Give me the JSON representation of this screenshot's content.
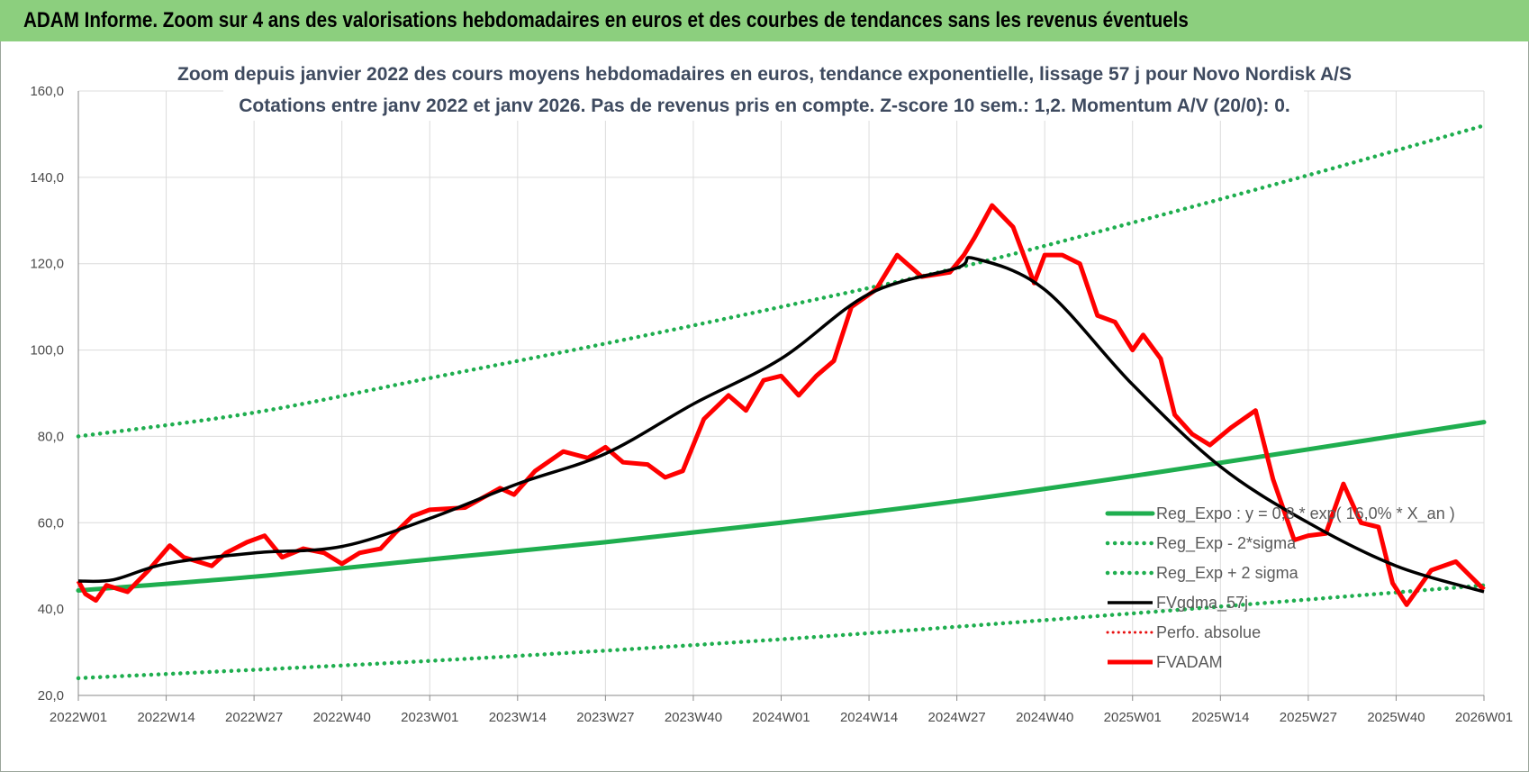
{
  "banner": {
    "title": "ADAM Informe. Zoom sur 4 ans des valorisations hebdomadaires en euros et des courbes de tendances sans les revenus éventuels"
  },
  "colors": {
    "banner_bg": "#8ccf7e",
    "regression": "#1fae4f",
    "bands": "#1fae4f",
    "smoothed": "#000000",
    "perfo": "#e81010",
    "price": "#ff0000",
    "grid": "#dcdcdc"
  },
  "chart_data": {
    "type": "line",
    "title_lines": [
      "Zoom depuis janvier 2022 des cours moyens hebdomadaires en euros, tendance exponentielle, lissage 57 j pour Novo Nordisk A/S",
      "Cotations entre janv 2022 et janv 2026. Pas de revenus pris en compte. Z-score 10 sem.: 1,2. Momentum A/V (20/0): 0."
    ],
    "ylim": [
      20,
      160
    ],
    "y_ticks": [
      "20,0",
      "40,0",
      "60,0",
      "80,0",
      "100,0",
      "120,0",
      "140,0",
      "160,0"
    ],
    "x_ticks": [
      "2022W01",
      "2022W14",
      "2022W27",
      "2022W40",
      "2023W01",
      "2023W14",
      "2023W27",
      "2023W40",
      "2024W01",
      "2024W14",
      "2024W27",
      "2024W40",
      "2025W01",
      "2025W14",
      "2025W27",
      "2025W40",
      "2026W01"
    ],
    "x_range_years": [
      0,
      4
    ],
    "grid": "both",
    "legend_position": "bottom-right",
    "legend": [
      "Reg_Expo : y = 0,8 * exp( 16,0% *  X_an )",
      "Reg_Exp - 2*sigma",
      "Reg_Exp + 2 sigma",
      "FVgdma_57j",
      "Perfo. absolue",
      "FVADAM"
    ],
    "series": [
      {
        "name": "Reg_Expo : y = 0,8 * exp( 16,0% *  X_an )",
        "style": "solid-thick",
        "points": [
          [
            0,
            44.3
          ],
          [
            0.5,
            47.5
          ],
          [
            1,
            51.5
          ],
          [
            1.5,
            55.5
          ],
          [
            2,
            60.0
          ],
          [
            2.5,
            65.0
          ],
          [
            3,
            70.8
          ],
          [
            3.5,
            77.0
          ],
          [
            4,
            83.3
          ]
        ]
      },
      {
        "name": "Reg_Exp - 2*sigma",
        "style": "dotted",
        "points": [
          [
            0,
            24.0
          ],
          [
            1,
            28.0
          ],
          [
            2,
            33.0
          ],
          [
            3,
            39.0
          ],
          [
            4,
            45.5
          ]
        ]
      },
      {
        "name": "Reg_Exp + 2 sigma",
        "style": "dotted",
        "points": [
          [
            0,
            80.0
          ],
          [
            0.5,
            85.5
          ],
          [
            1,
            93.5
          ],
          [
            1.5,
            101.5
          ],
          [
            2,
            110.0
          ],
          [
            2.5,
            119.0
          ],
          [
            3,
            129.5
          ],
          [
            3.5,
            140.5
          ],
          [
            4,
            152.0
          ]
        ]
      },
      {
        "name": "FVgdma_57j",
        "style": "solid",
        "points": [
          [
            0,
            46.5
          ],
          [
            0.1,
            46.8
          ],
          [
            0.25,
            50.5
          ],
          [
            0.5,
            53.0
          ],
          [
            0.75,
            54.5
          ],
          [
            1,
            61.0
          ],
          [
            1.25,
            69.0
          ],
          [
            1.5,
            76.0
          ],
          [
            1.75,
            87.5
          ],
          [
            2,
            98.0
          ],
          [
            2.25,
            113.0
          ],
          [
            2.5,
            119.0
          ],
          [
            2.55,
            121.2
          ],
          [
            2.75,
            114.0
          ],
          [
            3,
            92.0
          ],
          [
            3.25,
            73.0
          ],
          [
            3.5,
            60.0
          ],
          [
            3.75,
            50.0
          ],
          [
            4,
            44.0
          ]
        ]
      },
      {
        "name": "Perfo. absolue",
        "style": "dotted",
        "points": []
      },
      {
        "name": "FVADAM",
        "style": "solid-thick",
        "points": [
          [
            0,
            46.5
          ],
          [
            0.02,
            43.5
          ],
          [
            0.05,
            42.0
          ],
          [
            0.08,
            45.5
          ],
          [
            0.14,
            44.0
          ],
          [
            0.2,
            49.0
          ],
          [
            0.26,
            54.7
          ],
          [
            0.3,
            52.0
          ],
          [
            0.38,
            50.0
          ],
          [
            0.42,
            53.0
          ],
          [
            0.48,
            55.5
          ],
          [
            0.53,
            57.0
          ],
          [
            0.58,
            52.0
          ],
          [
            0.64,
            54.0
          ],
          [
            0.7,
            53.0
          ],
          [
            0.75,
            50.5
          ],
          [
            0.8,
            53.0
          ],
          [
            0.86,
            54.0
          ],
          [
            0.9,
            57.5
          ],
          [
            0.95,
            61.5
          ],
          [
            1,
            63.0
          ],
          [
            1.1,
            63.5
          ],
          [
            1.2,
            68.0
          ],
          [
            1.24,
            66.5
          ],
          [
            1.3,
            72.0
          ],
          [
            1.38,
            76.5
          ],
          [
            1.45,
            75.0
          ],
          [
            1.5,
            77.5
          ],
          [
            1.55,
            74.0
          ],
          [
            1.62,
            73.5
          ],
          [
            1.67,
            70.5
          ],
          [
            1.72,
            72.0
          ],
          [
            1.78,
            84.0
          ],
          [
            1.85,
            89.5
          ],
          [
            1.9,
            86.0
          ],
          [
            1.95,
            93.0
          ],
          [
            2,
            94.0
          ],
          [
            2.05,
            89.5
          ],
          [
            2.1,
            94.0
          ],
          [
            2.15,
            97.5
          ],
          [
            2.2,
            110.0
          ],
          [
            2.27,
            114.0
          ],
          [
            2.33,
            122.0
          ],
          [
            2.4,
            117.0
          ],
          [
            2.48,
            118.0
          ],
          [
            2.52,
            122.0
          ],
          [
            2.55,
            126.0
          ],
          [
            2.6,
            133.5
          ],
          [
            2.66,
            128.5
          ],
          [
            2.72,
            115.5
          ],
          [
            2.75,
            122.0
          ],
          [
            2.8,
            122.0
          ],
          [
            2.85,
            120.0
          ],
          [
            2.9,
            108.0
          ],
          [
            2.95,
            106.5
          ],
          [
            3,
            100.0
          ],
          [
            3.03,
            103.5
          ],
          [
            3.08,
            98.0
          ],
          [
            3.12,
            85.0
          ],
          [
            3.17,
            80.5
          ],
          [
            3.22,
            78.0
          ],
          [
            3.28,
            82.0
          ],
          [
            3.35,
            86.0
          ],
          [
            3.4,
            70.0
          ],
          [
            3.46,
            56.0
          ],
          [
            3.5,
            57.0
          ],
          [
            3.55,
            57.5
          ],
          [
            3.6,
            69.0
          ],
          [
            3.65,
            60.0
          ],
          [
            3.7,
            59.0
          ],
          [
            3.74,
            46.0
          ],
          [
            3.78,
            41.0
          ],
          [
            3.85,
            49.0
          ],
          [
            3.92,
            51.0
          ],
          [
            4,
            44.5
          ]
        ]
      }
    ]
  }
}
